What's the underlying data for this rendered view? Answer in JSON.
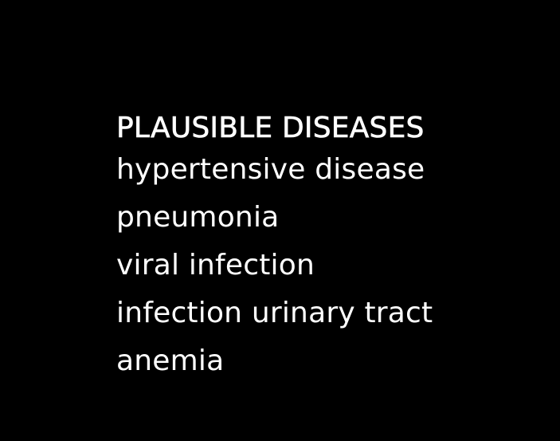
{
  "colors": {
    "background": "#000000",
    "text": "#ffffff"
  },
  "section": {
    "title": "PLAUSIBLE DISEASES",
    "items": [
      "hypertensive disease",
      "pneumonia",
      "viral infection",
      "infection urinary tract",
      "anemia"
    ]
  }
}
